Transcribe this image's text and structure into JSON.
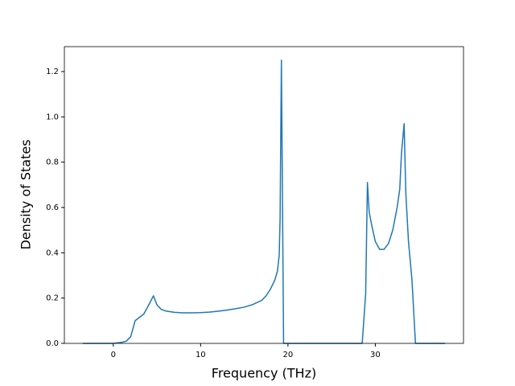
{
  "chart_data": {
    "type": "line",
    "x_label": "Frequency (THz)",
    "y_label": "Density of States",
    "x": [
      -3.5,
      0,
      1,
      1.5,
      2,
      2.5,
      3,
      3.5,
      4,
      4.6,
      5,
      5.5,
      6,
      7,
      8,
      9,
      10,
      11,
      12,
      13,
      14,
      15,
      16,
      17,
      17.5,
      18,
      18.5,
      18.8,
      19.0,
      19.1,
      19.25,
      19.5,
      28.5,
      28.9,
      29.1,
      29.3,
      29.6,
      30,
      30.5,
      31,
      31.5,
      32,
      32.5,
      32.8,
      33,
      33.3,
      33.5,
      33.8,
      34.2,
      34.6,
      38
    ],
    "series": [
      {
        "color": "#1f77b4",
        "values": [
          0,
          0,
          0.005,
          0.01,
          0.03,
          0.1,
          0.115,
          0.13,
          0.165,
          0.21,
          0.17,
          0.15,
          0.143,
          0.137,
          0.135,
          0.135,
          0.136,
          0.138,
          0.142,
          0.147,
          0.153,
          0.16,
          0.172,
          0.19,
          0.21,
          0.24,
          0.28,
          0.32,
          0.39,
          0.55,
          1.25,
          0,
          0,
          0.22,
          0.71,
          0.58,
          0.52,
          0.45,
          0.415,
          0.415,
          0.44,
          0.5,
          0.6,
          0.68,
          0.84,
          0.97,
          0.66,
          0.45,
          0.28,
          0,
          0
        ]
      }
    ],
    "xlim": [
      -5.6,
      40.1
    ],
    "ylim": [
      0,
      1.31
    ],
    "xticks": [
      0,
      10,
      20,
      30
    ],
    "yticks": [
      {
        "value": 0,
        "label": "0.0"
      },
      0.2,
      0.4,
      0.6,
      0.8,
      {
        "value": 1,
        "label": "1.0"
      },
      1.2
    ]
  }
}
